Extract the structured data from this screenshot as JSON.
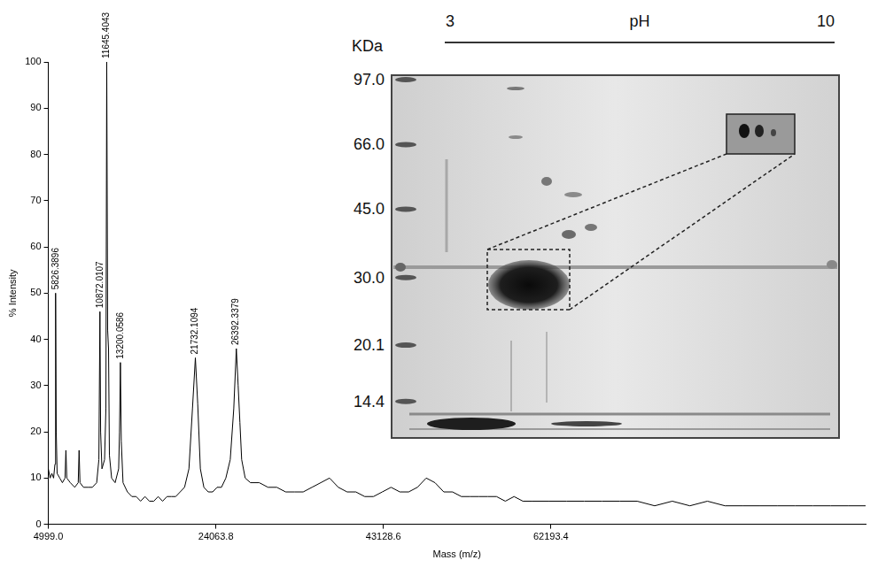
{
  "chart_data": {
    "type": "line",
    "x_label": "Mass (m/z)",
    "y_label": "% Intensity",
    "color": "#000000",
    "x": [
      4999,
      5200,
      5400,
      5600,
      5750,
      5826.3896,
      5900,
      6000,
      6300,
      6600,
      6900,
      7000,
      7100,
      7500,
      8000,
      8400,
      8500,
      8600,
      9000,
      9500,
      10000,
      10500,
      10750,
      10872.0107,
      10950,
      11100,
      11400,
      11550,
      11645.4043,
      11750,
      11850,
      11950,
      12200,
      12600,
      13000,
      13100,
      13200.0586,
      13300,
      13500,
      14000,
      14500,
      15000,
      15500,
      16000,
      16500,
      17000,
      17500,
      18000,
      18500,
      19000,
      19500,
      20000,
      20500,
      21000,
      21400,
      21732.1094,
      22000,
      22300,
      22700,
      23200,
      23700,
      24200,
      24700,
      25200,
      25700,
      26100,
      26392.3379,
      26600,
      26800,
      27000,
      27400,
      28000,
      29000,
      30000,
      31000,
      32000,
      33000,
      34000,
      35000,
      36000,
      37000,
      38000,
      39000,
      40000,
      41000,
      42000,
      43000,
      44000,
      45000,
      46000,
      47000,
      48000,
      49000,
      50000,
      51000,
      52000,
      53000,
      54000,
      55000,
      56000,
      57000,
      58000,
      59000,
      60000,
      62000,
      64000,
      66000,
      68000,
      70000,
      72000,
      74000,
      76000,
      78000,
      80000,
      82000,
      84000,
      86000,
      88000,
      90000,
      92000,
      94000,
      96000,
      98000
    ],
    "values": [
      12,
      10,
      11,
      10,
      13,
      50,
      20,
      11,
      10,
      9,
      10,
      16,
      10,
      9,
      8,
      9,
      16,
      9,
      8,
      8,
      8,
      9,
      14,
      46,
      20,
      12,
      14,
      25,
      100,
      42,
      38,
      15,
      10,
      9,
      12,
      20,
      35,
      18,
      9,
      7,
      6,
      6,
      5,
      6,
      5,
      5,
      6,
      5,
      6,
      6,
      6,
      7,
      8,
      12,
      25,
      36,
      26,
      12,
      8,
      7,
      7,
      8,
      8,
      10,
      14,
      25,
      38,
      30,
      22,
      14,
      10,
      9,
      9,
      8,
      8,
      7,
      7,
      7,
      8,
      9,
      10,
      8,
      7,
      7,
      6,
      6,
      7,
      8,
      7,
      7,
      8,
      10,
      9,
      7,
      7,
      6,
      6,
      6,
      6,
      6,
      5,
      6,
      5,
      5,
      5,
      5,
      5,
      5,
      5,
      5,
      4,
      5,
      4,
      5,
      4,
      4,
      4,
      4,
      4,
      4,
      4,
      4,
      4
    ],
    "xlim": [
      4999,
      98000
    ],
    "xticks": [
      {
        "value": 4999,
        "label": "4999.0"
      },
      24063.8,
      43128.6,
      62193.4
    ],
    "ylim": [
      0,
      100
    ],
    "yticks": [
      0,
      10,
      20,
      30,
      40,
      50,
      60,
      70,
      80,
      90,
      100
    ],
    "grid": false,
    "annotations": [
      {
        "x": 5826.3896,
        "y": 50,
        "label": "5826.3896"
      },
      {
        "x": 10872.0107,
        "y": 46,
        "label": "10872.0107"
      },
      {
        "x": 11645.4043,
        "y": 100,
        "label": "11645.4043"
      },
      {
        "x": 13200.0586,
        "y": 35,
        "label": "13200.0586"
      },
      {
        "x": 21732.1094,
        "y": 36,
        "label": "21732.1094"
      },
      {
        "x": 26392.3379,
        "y": 38,
        "label": "26392.3379"
      }
    ]
  },
  "inset": {
    "unit": "KDa",
    "axis_label": "pH",
    "ph_range": [
      3,
      10
    ],
    "markers": [
      {
        "value": 97,
        "label": "97.0"
      },
      {
        "value": 66,
        "label": "66.0"
      },
      {
        "value": 45,
        "label": "45.0"
      },
      {
        "value": 30,
        "label": "30.0"
      },
      20.1,
      14.4
    ]
  }
}
